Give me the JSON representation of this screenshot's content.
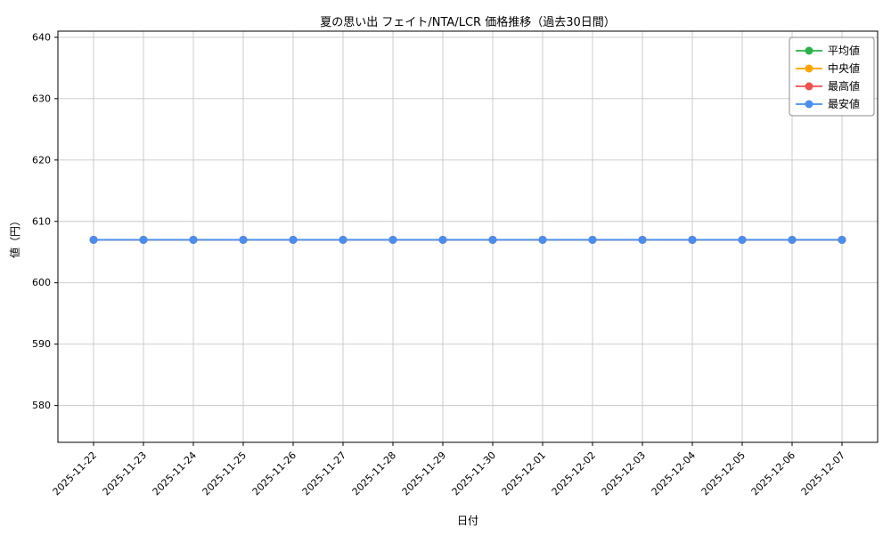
{
  "chart_data": {
    "type": "line",
    "title": "夏の思い出 フェイト/NTA/LCR 価格推移（過去30日間）",
    "xlabel": "日付",
    "ylabel": "値（円）",
    "categories": [
      "2025-11-22",
      "2025-11-23",
      "2025-11-24",
      "2025-11-25",
      "2025-11-26",
      "2025-11-27",
      "2025-11-28",
      "2025-11-29",
      "2025-11-30",
      "2025-12-01",
      "2025-12-02",
      "2025-12-03",
      "2025-12-04",
      "2025-12-05",
      "2025-12-06",
      "2025-12-07"
    ],
    "series": [
      {
        "name": "平均値",
        "color": "#2bb14c",
        "values": [
          607,
          607,
          607,
          607,
          607,
          607,
          607,
          607,
          607,
          607,
          607,
          607,
          607,
          607,
          607,
          607
        ]
      },
      {
        "name": "中央値",
        "color": "#ffa500",
        "values": [
          607,
          607,
          607,
          607,
          607,
          607,
          607,
          607,
          607,
          607,
          607,
          607,
          607,
          607,
          607,
          607
        ]
      },
      {
        "name": "最高値",
        "color": "#f05050",
        "values": [
          607,
          607,
          607,
          607,
          607,
          607,
          607,
          607,
          607,
          607,
          607,
          607,
          607,
          607,
          607,
          607
        ]
      },
      {
        "name": "最安値",
        "color": "#4a8df0",
        "values": [
          607,
          607,
          607,
          607,
          607,
          607,
          607,
          607,
          607,
          607,
          607,
          607,
          607,
          607,
          607,
          607
        ]
      }
    ],
    "ylim": [
      574,
      641
    ],
    "yticks": [
      580,
      590,
      600,
      610,
      620,
      630,
      640
    ],
    "grid": true,
    "legend_position": "upper right",
    "x_tick_rotation": 45,
    "grid_color": "#c8c8c8",
    "spine_color": "#000000",
    "legend_border_color": "#8c8c8c"
  }
}
